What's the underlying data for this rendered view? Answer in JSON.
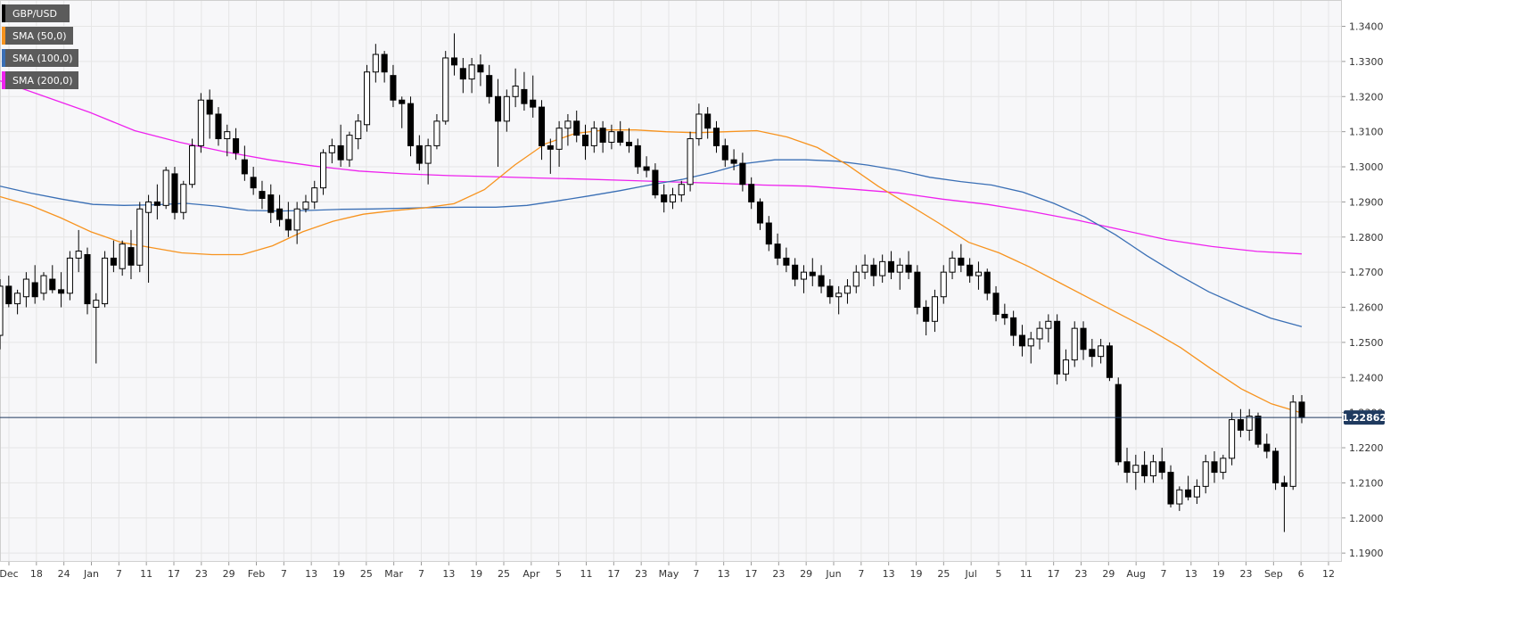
{
  "chart_data": {
    "type": "candlestick",
    "symbol": "GBP/USD",
    "y_axis": {
      "ticks": [
        "1.1900",
        "1.2000",
        "1.2100",
        "1.2200",
        "1.2300",
        "1.2400",
        "1.2500",
        "1.2600",
        "1.2700",
        "1.2800",
        "1.2900",
        "1.3000",
        "1.3100",
        "1.3200",
        "1.3300",
        "1.3400"
      ],
      "range": [
        1.1875,
        1.3475
      ]
    },
    "x_axis": {
      "ticks": [
        "Dec",
        "18",
        "24",
        "Jan",
        "7",
        "11",
        "17",
        "23",
        "29",
        "Feb",
        "7",
        "13",
        "19",
        "25",
        "Mar",
        "7",
        "13",
        "19",
        "25",
        "Apr",
        "5",
        "11",
        "17",
        "23",
        "May",
        "7",
        "13",
        "17",
        "23",
        "29",
        "Jun",
        "7",
        "13",
        "19",
        "25",
        "Jul",
        "5",
        "11",
        "17",
        "23",
        "29",
        "Aug",
        "7",
        "13",
        "19",
        "23",
        "Sep",
        "6",
        "12"
      ]
    },
    "current_price": "1.22862",
    "current_price_value": 1.22862,
    "colors": {
      "candle_body_up": "#ffffff",
      "candle_body_down": "#000000",
      "sma50": "#f7931e",
      "sma100": "#3a6fb5",
      "sma200": "#ee22ee",
      "price_line": "#1f3a5f",
      "grid": "#e6e6e6",
      "plot_bg": "#f7f7f9"
    },
    "legend": [
      {
        "label": "GBP/USD",
        "color": "#000000"
      },
      {
        "label": "SMA (50,0)",
        "color": "#f7931e"
      },
      {
        "label": "SMA (100,0)",
        "color": "#3a6fb5"
      },
      {
        "label": "SMA (200,0)",
        "color": "#ee22ee"
      }
    ],
    "series_sma50": [
      1.2915,
      1.289,
      1.2855,
      1.2815,
      1.2785,
      1.277,
      1.2755,
      1.275,
      1.275,
      1.2775,
      1.2815,
      1.2845,
      1.2865,
      1.2875,
      1.2883,
      1.2895,
      1.2935,
      1.3005,
      1.3065,
      1.3095,
      1.3105,
      1.3105,
      1.31,
      1.3097,
      1.31,
      1.3103,
      1.3085,
      1.3055,
      1.3005,
      1.2945,
      1.2893,
      1.284,
      1.2785,
      1.2755,
      1.2715,
      1.267,
      1.2625,
      1.258,
      1.2535,
      1.2485,
      1.2425,
      1.2368,
      1.2325,
      1.2299
    ],
    "series_sma100": [
      1.2945,
      1.2925,
      1.2908,
      1.2893,
      1.289,
      1.2892,
      1.2896,
      1.2888,
      1.2876,
      1.2874,
      1.2876,
      1.2879,
      1.288,
      1.2882,
      1.2884,
      1.2885,
      1.2885,
      1.289,
      1.2903,
      1.2917,
      1.2932,
      1.2949,
      1.2964,
      1.2984,
      1.3009,
      1.302,
      1.302,
      1.3016,
      1.3005,
      1.299,
      1.297,
      1.2958,
      1.2948,
      1.2928,
      1.2896,
      1.2857,
      1.2806,
      1.2747,
      1.2693,
      1.2644,
      1.2605,
      1.2569,
      1.2545
    ],
    "series_sma200": [
      1.3245,
      1.32,
      1.3155,
      1.3103,
      1.307,
      1.3043,
      1.302,
      1.3002,
      1.2988,
      1.298,
      1.2975,
      1.2972,
      1.2968,
      1.2965,
      1.2961,
      1.2957,
      1.2953,
      1.2948,
      1.2945,
      1.2936,
      1.2926,
      1.2908,
      1.2893,
      1.2872,
      1.2848,
      1.282,
      1.2792,
      1.2773,
      1.2759,
      1.2752
    ],
    "candles": [
      [
        1.252,
        1.268,
        1.248,
        1.266
      ],
      [
        1.266,
        1.269,
        1.26,
        1.261
      ],
      [
        1.261,
        1.265,
        1.258,
        1.264
      ],
      [
        1.263,
        1.27,
        1.26,
        1.268
      ],
      [
        1.267,
        1.272,
        1.261,
        1.263
      ],
      [
        1.264,
        1.27,
        1.262,
        1.269
      ],
      [
        1.268,
        1.272,
        1.264,
        1.265
      ],
      [
        1.265,
        1.27,
        1.26,
        1.264
      ],
      [
        1.264,
        1.276,
        1.262,
        1.274
      ],
      [
        1.274,
        1.282,
        1.27,
        1.276
      ],
      [
        1.275,
        1.277,
        1.258,
        1.261
      ],
      [
        1.26,
        1.264,
        1.244,
        1.262
      ],
      [
        1.261,
        1.276,
        1.26,
        1.274
      ],
      [
        1.274,
        1.279,
        1.27,
        1.272
      ],
      [
        1.271,
        1.279,
        1.269,
        1.278
      ],
      [
        1.277,
        1.282,
        1.268,
        1.272
      ],
      [
        1.272,
        1.29,
        1.27,
        1.288
      ],
      [
        1.287,
        1.292,
        1.267,
        1.29
      ],
      [
        1.29,
        1.295,
        1.285,
        1.289
      ],
      [
        1.289,
        1.3,
        1.288,
        1.299
      ],
      [
        1.298,
        1.3,
        1.285,
        1.287
      ],
      [
        1.287,
        1.296,
        1.285,
        1.295
      ],
      [
        1.295,
        1.308,
        1.294,
        1.306
      ],
      [
        1.306,
        1.321,
        1.304,
        1.319
      ],
      [
        1.319,
        1.322,
        1.308,
        1.315
      ],
      [
        1.315,
        1.317,
        1.306,
        1.308
      ],
      [
        1.308,
        1.312,
        1.303,
        1.31
      ],
      [
        1.308,
        1.311,
        1.302,
        1.304
      ],
      [
        1.302,
        1.306,
        1.296,
        1.298
      ],
      [
        1.297,
        1.3,
        1.292,
        1.294
      ],
      [
        1.293,
        1.296,
        1.288,
        1.291
      ],
      [
        1.292,
        1.295,
        1.284,
        1.287
      ],
      [
        1.288,
        1.292,
        1.283,
        1.285
      ],
      [
        1.285,
        1.29,
        1.28,
        1.282
      ],
      [
        1.282,
        1.29,
        1.278,
        1.288
      ],
      [
        1.288,
        1.292,
        1.287,
        1.29
      ],
      [
        1.29,
        1.296,
        1.288,
        1.294
      ],
      [
        1.294,
        1.305,
        1.292,
        1.304
      ],
      [
        1.304,
        1.308,
        1.301,
        1.306
      ],
      [
        1.306,
        1.312,
        1.3,
        1.302
      ],
      [
        1.302,
        1.31,
        1.3,
        1.309
      ],
      [
        1.308,
        1.315,
        1.305,
        1.313
      ],
      [
        1.312,
        1.329,
        1.31,
        1.327
      ],
      [
        1.327,
        1.335,
        1.324,
        1.332
      ],
      [
        1.332,
        1.333,
        1.324,
        1.327
      ],
      [
        1.326,
        1.329,
        1.317,
        1.319
      ],
      [
        1.319,
        1.32,
        1.311,
        1.318
      ],
      [
        1.318,
        1.32,
        1.303,
        1.306
      ],
      [
        1.306,
        1.309,
        1.299,
        1.301
      ],
      [
        1.301,
        1.308,
        1.295,
        1.306
      ],
      [
        1.306,
        1.315,
        1.305,
        1.313
      ],
      [
        1.313,
        1.333,
        1.312,
        1.331
      ],
      [
        1.331,
        1.338,
        1.326,
        1.329
      ],
      [
        1.328,
        1.331,
        1.321,
        1.325
      ],
      [
        1.325,
        1.331,
        1.321,
        1.329
      ],
      [
        1.329,
        1.332,
        1.323,
        1.327
      ],
      [
        1.326,
        1.329,
        1.318,
        1.32
      ],
      [
        1.32,
        1.325,
        1.3,
        1.313
      ],
      [
        1.313,
        1.322,
        1.31,
        1.32
      ],
      [
        1.32,
        1.328,
        1.317,
        1.323
      ],
      [
        1.322,
        1.327,
        1.316,
        1.318
      ],
      [
        1.319,
        1.326,
        1.314,
        1.317
      ],
      [
        1.317,
        1.319,
        1.302,
        1.306
      ],
      [
        1.306,
        1.308,
        1.298,
        1.305
      ],
      [
        1.305,
        1.313,
        1.3,
        1.311
      ],
      [
        1.311,
        1.315,
        1.306,
        1.313
      ],
      [
        1.313,
        1.316,
        1.307,
        1.309
      ],
      [
        1.309,
        1.312,
        1.302,
        1.306
      ],
      [
        1.306,
        1.313,
        1.304,
        1.311
      ],
      [
        1.311,
        1.313,
        1.304,
        1.307
      ],
      [
        1.307,
        1.312,
        1.305,
        1.31
      ],
      [
        1.31,
        1.313,
        1.306,
        1.307
      ],
      [
        1.307,
        1.311,
        1.304,
        1.306
      ],
      [
        1.306,
        1.308,
        1.298,
        1.3
      ],
      [
        1.3,
        1.303,
        1.297,
        1.299
      ],
      [
        1.299,
        1.301,
        1.291,
        1.292
      ],
      [
        1.292,
        1.295,
        1.287,
        1.29
      ],
      [
        1.29,
        1.294,
        1.288,
        1.292
      ],
      [
        1.292,
        1.296,
        1.29,
        1.295
      ],
      [
        1.295,
        1.31,
        1.293,
        1.308
      ],
      [
        1.308,
        1.318,
        1.306,
        1.315
      ],
      [
        1.315,
        1.317,
        1.308,
        1.311
      ],
      [
        1.311,
        1.313,
        1.304,
        1.306
      ],
      [
        1.306,
        1.308,
        1.3,
        1.302
      ],
      [
        1.302,
        1.305,
        1.299,
        1.301
      ],
      [
        1.301,
        1.304,
        1.293,
        1.295
      ],
      [
        1.295,
        1.297,
        1.288,
        1.29
      ],
      [
        1.29,
        1.291,
        1.282,
        1.284
      ],
      [
        1.284,
        1.286,
        1.276,
        1.278
      ],
      [
        1.278,
        1.281,
        1.272,
        1.274
      ],
      [
        1.274,
        1.277,
        1.27,
        1.272
      ],
      [
        1.272,
        1.274,
        1.266,
        1.268
      ],
      [
        1.268,
        1.272,
        1.264,
        1.27
      ],
      [
        1.27,
        1.274,
        1.266,
        1.269
      ],
      [
        1.269,
        1.272,
        1.264,
        1.266
      ],
      [
        1.266,
        1.268,
        1.261,
        1.263
      ],
      [
        1.263,
        1.266,
        1.258,
        1.264
      ],
      [
        1.264,
        1.268,
        1.261,
        1.266
      ],
      [
        1.266,
        1.272,
        1.264,
        1.27
      ],
      [
        1.27,
        1.275,
        1.268,
        1.272
      ],
      [
        1.272,
        1.274,
        1.266,
        1.269
      ],
      [
        1.269,
        1.275,
        1.267,
        1.273
      ],
      [
        1.273,
        1.276,
        1.268,
        1.27
      ],
      [
        1.27,
        1.274,
        1.265,
        1.272
      ],
      [
        1.272,
        1.276,
        1.268,
        1.27
      ],
      [
        1.27,
        1.272,
        1.258,
        1.26
      ],
      [
        1.26,
        1.262,
        1.252,
        1.256
      ],
      [
        1.256,
        1.265,
        1.253,
        1.263
      ],
      [
        1.263,
        1.272,
        1.261,
        1.27
      ],
      [
        1.27,
        1.276,
        1.268,
        1.274
      ],
      [
        1.274,
        1.278,
        1.27,
        1.272
      ],
      [
        1.272,
        1.274,
        1.267,
        1.269
      ],
      [
        1.269,
        1.273,
        1.265,
        1.27
      ],
      [
        1.27,
        1.271,
        1.262,
        1.264
      ],
      [
        1.264,
        1.266,
        1.256,
        1.258
      ],
      [
        1.258,
        1.261,
        1.255,
        1.257
      ],
      [
        1.257,
        1.259,
        1.249,
        1.252
      ],
      [
        1.252,
        1.255,
        1.246,
        1.249
      ],
      [
        1.249,
        1.253,
        1.244,
        1.251
      ],
      [
        1.251,
        1.256,
        1.248,
        1.254
      ],
      [
        1.254,
        1.258,
        1.25,
        1.256
      ],
      [
        1.256,
        1.258,
        1.238,
        1.241
      ],
      [
        1.241,
        1.248,
        1.239,
        1.245
      ],
      [
        1.245,
        1.256,
        1.243,
        1.254
      ],
      [
        1.254,
        1.256,
        1.245,
        1.248
      ],
      [
        1.248,
        1.251,
        1.243,
        1.246
      ],
      [
        1.246,
        1.251,
        1.244,
        1.249
      ],
      [
        1.249,
        1.25,
        1.239,
        1.24
      ],
      [
        1.238,
        1.24,
        1.215,
        1.216
      ],
      [
        1.216,
        1.22,
        1.21,
        1.213
      ],
      [
        1.213,
        1.218,
        1.208,
        1.215
      ],
      [
        1.215,
        1.219,
        1.21,
        1.212
      ],
      [
        1.212,
        1.218,
        1.21,
        1.216
      ],
      [
        1.216,
        1.22,
        1.211,
        1.213
      ],
      [
        1.213,
        1.215,
        1.203,
        1.204
      ],
      [
        1.204,
        1.209,
        1.202,
        1.208
      ],
      [
        1.208,
        1.212,
        1.205,
        1.206
      ],
      [
        1.206,
        1.211,
        1.204,
        1.209
      ],
      [
        1.209,
        1.218,
        1.207,
        1.216
      ],
      [
        1.216,
        1.219,
        1.21,
        1.213
      ],
      [
        1.213,
        1.218,
        1.211,
        1.217
      ],
      [
        1.217,
        1.23,
        1.215,
        1.228
      ],
      [
        1.228,
        1.231,
        1.223,
        1.225
      ],
      [
        1.225,
        1.231,
        1.222,
        1.229
      ],
      [
        1.229,
        1.23,
        1.22,
        1.221
      ],
      [
        1.221,
        1.224,
        1.217,
        1.219
      ],
      [
        1.219,
        1.22,
        1.208,
        1.21
      ],
      [
        1.21,
        1.212,
        1.196,
        1.209
      ],
      [
        1.209,
        1.235,
        1.208,
        1.233
      ],
      [
        1.233,
        1.235,
        1.227,
        1.2286
      ]
    ]
  }
}
